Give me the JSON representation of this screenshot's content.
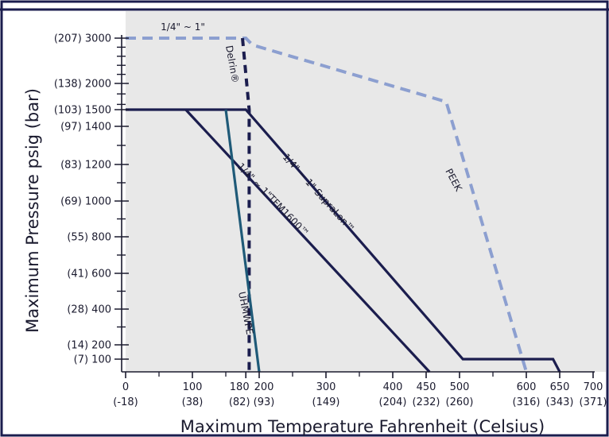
{
  "chart_data": {
    "type": "line",
    "xlabel": "Maximum Temperature Fahrenheit (Celsius)",
    "ylabel": "Maximum Pressure psig (bar)",
    "xlim": [
      0,
      700
    ],
    "ylim": [
      0,
      3000
    ],
    "y_scale": "piecewise: linear 0–1500 with 100–200 compressed, 1500–3000 compressed",
    "x_ticks": [
      {
        "value": 0,
        "label": "0",
        "sublabel": "(-18)"
      },
      {
        "value": 100,
        "label": "100",
        "sublabel": "(38)"
      },
      {
        "value": 180,
        "label": "180",
        "sublabel": "(82)"
      },
      {
        "value": 200,
        "label": "200",
        "sublabel": "(93)"
      },
      {
        "value": 300,
        "label": "300",
        "sublabel": "(149)"
      },
      {
        "value": 400,
        "label": "400",
        "sublabel": "(204)"
      },
      {
        "value": 450,
        "label": "450",
        "sublabel": "(232)"
      },
      {
        "value": 500,
        "label": "500",
        "sublabel": "(260)"
      },
      {
        "value": 600,
        "label": "600",
        "sublabel": "(316)"
      },
      {
        "value": 650,
        "label": "650",
        "sublabel": "(343)"
      },
      {
        "value": 700,
        "label": "700",
        "sublabel": "(371)"
      }
    ],
    "y_ticks": [
      {
        "value": 3000,
        "label": "(207) 3000"
      },
      {
        "value": 2000,
        "label": "(138) 2000"
      },
      {
        "value": 1500,
        "label": "(103) 1500"
      },
      {
        "value": 1400,
        "label": "(97) 1400"
      },
      {
        "value": 1200,
        "label": "(83) 1200"
      },
      {
        "value": 1000,
        "label": "(69) 1000"
      },
      {
        "value": 800,
        "label": "(55) 800"
      },
      {
        "value": 600,
        "label": "(41) 600"
      },
      {
        "value": 400,
        "label": "(28) 400"
      },
      {
        "value": 200,
        "label": "(14) 200"
      },
      {
        "value": 100,
        "label": "(7) 100"
      }
    ],
    "y_minor_ticks": [
      2800,
      2600,
      2400,
      2200,
      1800,
      1600,
      1300,
      1100,
      900,
      700,
      500,
      300
    ],
    "x_minor_ticks": [
      50,
      150,
      250,
      350,
      550
    ],
    "series": [
      {
        "name": "PEEK",
        "style": "dashed",
        "color": "#8c9fd0",
        "points": [
          [
            0,
            3000
          ],
          [
            180,
            3000
          ],
          [
            190,
            2850
          ],
          [
            480,
            1650
          ],
          [
            600,
            0
          ]
        ]
      },
      {
        "name": "Delrin®",
        "style": "dashed",
        "color": "#1b1d4e",
        "points": [
          [
            175,
            3000
          ],
          [
            185,
            1500
          ],
          [
            185,
            0
          ]
        ]
      },
      {
        "name": "1/4\" ~ 1\" SupraLon™",
        "style": "solid",
        "color": "#1b1d4e",
        "points": [
          [
            0,
            1500
          ],
          [
            180,
            1500
          ],
          [
            505,
            100
          ],
          [
            640,
            100
          ],
          [
            650,
            0
          ]
        ]
      },
      {
        "name": "1/4\" ~ 1\"TFM1600™",
        "style": "solid",
        "color": "#1b1d4e",
        "points": [
          [
            90,
            1500
          ],
          [
            455,
            0
          ]
        ]
      },
      {
        "name": "UHMWPE",
        "style": "solid",
        "color": "#1f5a78",
        "points": [
          [
            150,
            1500
          ],
          [
            200,
            0
          ]
        ]
      }
    ],
    "annotations": [
      {
        "text": "1/4\" ~ 1\""
      },
      {
        "text": "Delrin®"
      },
      {
        "text": "PEEK"
      },
      {
        "text": "1/4\" ~ 1\" SupraLon™"
      },
      {
        "text": "1/4\" ~ 1\"TFM1600™"
      },
      {
        "text": "UHMWPE"
      }
    ],
    "colors": {
      "frame": "#1b1d4e",
      "shaded_region": "#e8e8e8",
      "text": "#1a1a2e"
    }
  }
}
